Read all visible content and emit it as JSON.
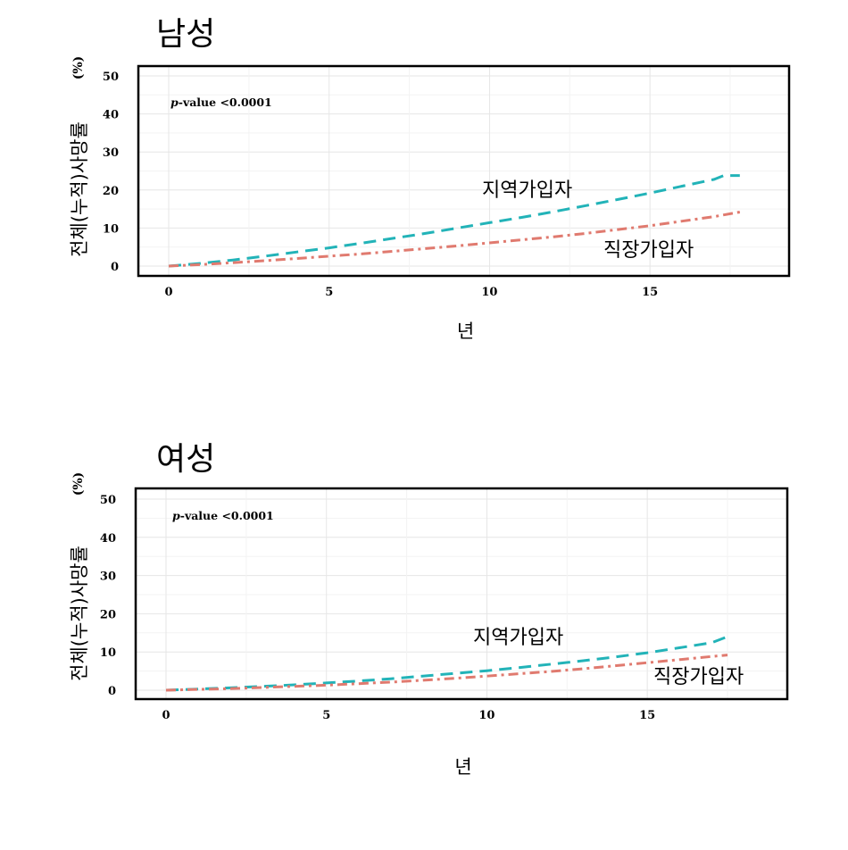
{
  "chart_data": [
    {
      "type": "line",
      "title": "남성",
      "xlabel": "년",
      "ylabel": "전체(누적)사망률",
      "yunit": "(%)",
      "annotation": "p-value <0.0001",
      "xlim": [
        0,
        18
      ],
      "ylim": [
        0,
        50
      ],
      "xticks": [
        "0",
        "5",
        "10",
        "15"
      ],
      "yticks": [
        "0",
        "10",
        "20",
        "30",
        "40",
        "50"
      ],
      "grid": true,
      "series": [
        {
          "name": "지역가입자",
          "color": "#22b3b8",
          "style": "dashed",
          "x": [
            0,
            1,
            2,
            3,
            4,
            5,
            6,
            7,
            8,
            9,
            10,
            11,
            12,
            13,
            14,
            15,
            16,
            17,
            17.3,
            17.8
          ],
          "y": [
            0,
            0.7,
            1.6,
            2.6,
            3.7,
            4.8,
            6.0,
            7.3,
            8.6,
            10.0,
            11.4,
            12.8,
            14.3,
            15.9,
            17.5,
            19.2,
            21.0,
            22.8,
            23.8,
            23.8
          ]
        },
        {
          "name": "직장가입자",
          "color": "#e07a6f",
          "style": "dashdot",
          "x": [
            0,
            1,
            2,
            3,
            4,
            5,
            6,
            7,
            8,
            9,
            10,
            11,
            12,
            13,
            14,
            15,
            16,
            17,
            17.8
          ],
          "y": [
            0,
            0.4,
            0.9,
            1.4,
            2.0,
            2.6,
            3.2,
            3.9,
            4.6,
            5.3,
            6.1,
            6.9,
            7.7,
            8.6,
            9.6,
            10.6,
            11.8,
            13.0,
            14.2
          ]
        }
      ]
    },
    {
      "type": "line",
      "title": "여성",
      "xlabel": "년",
      "ylabel": "전체(누적)사망률",
      "yunit": "(%)",
      "annotation": "p-value <0.0001",
      "xlim": [
        0,
        18
      ],
      "ylim": [
        0,
        50
      ],
      "xticks": [
        "0",
        "5",
        "10",
        "15"
      ],
      "yticks": [
        "0",
        "10",
        "20",
        "30",
        "40",
        "50"
      ],
      "grid": true,
      "series": [
        {
          "name": "지역가입자",
          "color": "#22b3b8",
          "style": "dashed",
          "x": [
            0,
            1,
            2,
            3,
            4,
            5,
            6,
            7,
            8,
            9,
            10,
            11,
            12,
            13,
            14,
            15,
            16,
            17,
            17.5
          ],
          "y": [
            0,
            0.3,
            0.6,
            1.0,
            1.4,
            1.9,
            2.4,
            3.0,
            3.7,
            4.4,
            5.1,
            5.9,
            6.8,
            7.7,
            8.7,
            9.8,
            11.1,
            12.4,
            14.0
          ]
        },
        {
          "name": "직장가입자",
          "color": "#e07a6f",
          "style": "dashdot",
          "x": [
            0,
            1,
            2,
            3,
            4,
            5,
            6,
            7,
            8,
            9,
            10,
            11,
            12,
            13,
            14,
            15,
            16,
            17,
            17.5
          ],
          "y": [
            0,
            0.2,
            0.4,
            0.7,
            1.0,
            1.3,
            1.7,
            2.1,
            2.6,
            3.1,
            3.7,
            4.3,
            4.9,
            5.6,
            6.4,
            7.2,
            8.0,
            8.8,
            9.2
          ]
        }
      ]
    }
  ]
}
